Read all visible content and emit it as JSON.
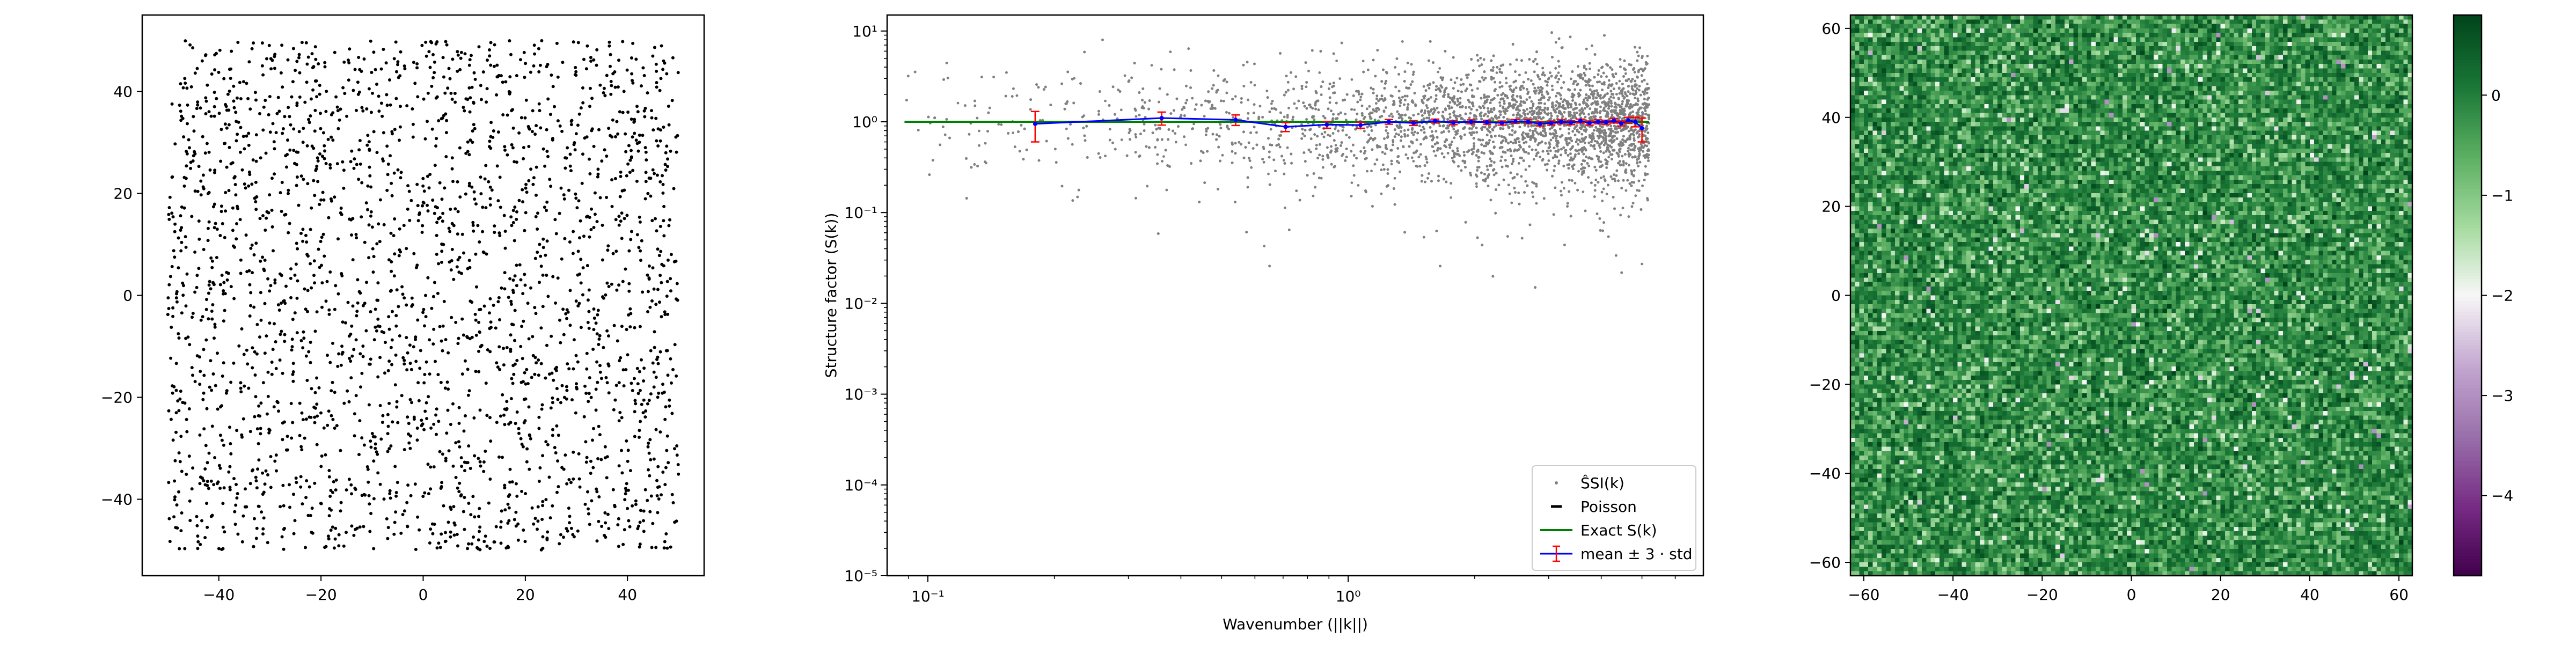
{
  "chart_data": [
    {
      "type": "scatter",
      "title": "",
      "xlabel": "",
      "ylabel": "",
      "xlim": [
        -55,
        55
      ],
      "ylim": [
        -55,
        55
      ],
      "x_ticks": [
        -40,
        -20,
        0,
        20,
        40
      ],
      "y_ticks": [
        -40,
        -20,
        0,
        20,
        40
      ],
      "x_tick_labels": [
        "−40",
        "−20",
        "0",
        "20",
        "40"
      ],
      "y_tick_labels": [
        "−40",
        "−20",
        "0",
        "20",
        "40"
      ],
      "point_color": "#000000",
      "points": {
        "count": 2500,
        "region": {
          "x": [
            -50,
            50
          ],
          "y": [
            -50,
            50
          ]
        },
        "distribution": "uniform"
      }
    },
    {
      "type": "scatter",
      "title": "",
      "xlabel": "Wavenumber (||k||)",
      "ylabel": "Structure factor (S(k))",
      "xscale": "log",
      "yscale": "log",
      "xlim": [
        0.08,
        7.0
      ],
      "ylim": [
        1e-05,
        15
      ],
      "x_tick_labels": [
        "10⁻¹",
        "10⁰"
      ],
      "y_tick_labels": [
        "10⁻⁵",
        "10⁻⁴",
        "10⁻³",
        "10⁻²",
        "10⁻¹",
        "10⁰",
        "10¹"
      ],
      "legend_position": "bottom-right",
      "legend": [
        {
          "label": "ŜSI(k)",
          "marker": "dot",
          "color": "#808080"
        },
        {
          "label": "Poisson",
          "marker": "dash",
          "color": "#000000"
        },
        {
          "label": "Exact S(k)",
          "marker": "line",
          "color": "#008000"
        },
        {
          "label": "mean ± 3 · std",
          "marker": "errorbar",
          "color": "#0000ff",
          "errcolor": "#ff0000"
        }
      ],
      "scatter_cloud": {
        "color": "#808080",
        "description_of_distribution": "log-normal spread around 1, density increasing with k",
        "k_range": [
          0.088,
          5.2
        ],
        "count": 7000
      },
      "exact_value": 1.0,
      "poisson_value": 1.0,
      "binned_k": [
        0.18,
        0.36,
        0.54,
        0.71,
        0.89,
        1.07,
        1.25,
        1.43,
        1.61,
        1.78,
        1.96,
        2.14,
        2.32,
        2.5,
        2.68,
        2.86,
        3.04,
        3.21,
        3.39,
        3.57,
        3.75,
        3.93,
        4.11,
        4.29,
        4.46,
        4.64,
        4.82,
        5.0
      ],
      "binned_mean": [
        0.95,
        1.1,
        1.05,
        0.88,
        0.93,
        0.92,
        1.0,
        0.97,
        1.02,
        0.98,
        1.0,
        0.99,
        0.97,
        1.01,
        1.0,
        0.95,
        0.97,
        1.0,
        0.98,
        1.02,
        0.97,
        1.0,
        0.99,
        1.03,
        0.96,
        1.04,
        1.0,
        0.85
      ],
      "binned_std3": [
        0.35,
        0.18,
        0.14,
        0.1,
        0.08,
        0.07,
        0.06,
        0.06,
        0.05,
        0.05,
        0.05,
        0.05,
        0.05,
        0.05,
        0.05,
        0.05,
        0.05,
        0.05,
        0.05,
        0.05,
        0.05,
        0.05,
        0.05,
        0.06,
        0.06,
        0.08,
        0.12,
        0.25
      ]
    },
    {
      "type": "heatmap",
      "title": "",
      "xlabel": "",
      "ylabel": "",
      "xlim": [
        -63,
        63
      ],
      "ylim": [
        -63,
        63
      ],
      "x_ticks": [
        -60,
        -40,
        -20,
        0,
        20,
        40,
        60
      ],
      "y_ticks": [
        -60,
        -40,
        -20,
        0,
        20,
        40,
        60
      ],
      "x_tick_labels": [
        "−60",
        "−40",
        "−20",
        "0",
        "20",
        "40",
        "60"
      ],
      "y_tick_labels": [
        "−60",
        "−40",
        "−20",
        "0",
        "20",
        "40",
        "60"
      ],
      "grid_size": 126,
      "colormap": "PRGn",
      "colorbar": {
        "vmin": -4.8,
        "vmax": 0.8,
        "ticks": [
          0,
          -1,
          -2,
          -3,
          -4
        ],
        "tick_labels": [
          "0",
          "−1",
          "−2",
          "−3",
          "−4"
        ]
      },
      "values_description": "log structure factor on k-grid; values mostly between -1 and 0.8"
    }
  ]
}
